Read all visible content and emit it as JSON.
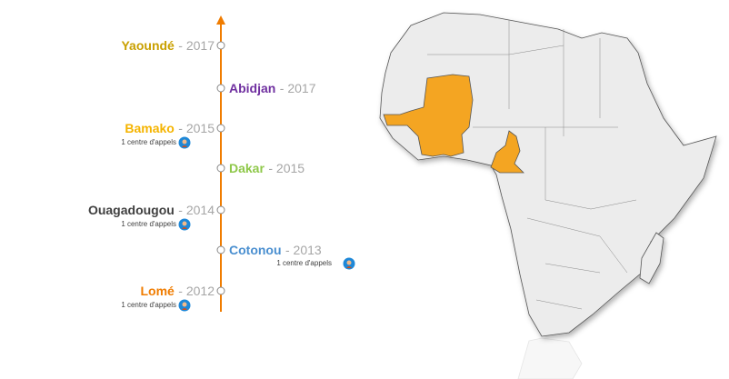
{
  "timeline": [
    {
      "city": "Yaoundé",
      "year": "- 2017",
      "color": "#c9a000",
      "side": "left"
    },
    {
      "city": "Abidjan",
      "year": "- 2017",
      "color": "#7030a0",
      "side": "right"
    },
    {
      "city": "Bamako",
      "year": "- 2015",
      "color": "#f5b400",
      "side": "left",
      "note": "1 centre d'appels"
    },
    {
      "city": "Dakar",
      "year": "- 2015",
      "color": "#8fc84a",
      "side": "right"
    },
    {
      "city": "Ouagadougou",
      "year": "- 2014",
      "color": "#404040",
      "side": "left",
      "note": "1 centre d'appels"
    },
    {
      "city": "Cotonou",
      "year": "- 2013",
      "color": "#4a8fd0",
      "side": "right",
      "note": "1 centre d'appels"
    },
    {
      "city": "Lomé",
      "year": "- 2012",
      "color": "#f07c00",
      "side": "left",
      "note": "1 centre d'appels"
    }
  ]
}
